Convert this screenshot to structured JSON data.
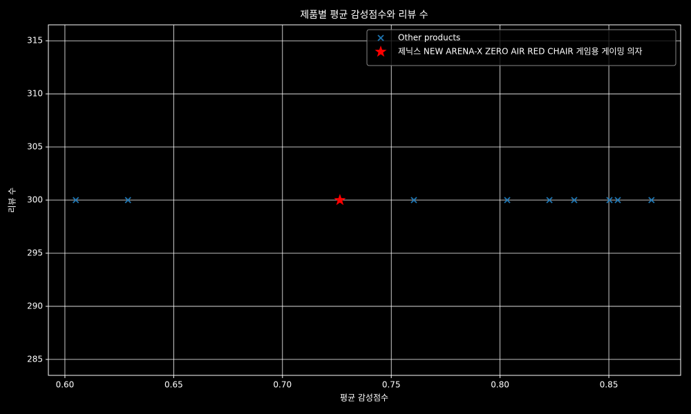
{
  "chart_data": {
    "type": "scatter",
    "title": "제품별 평균 감성점수와 리뷰 수",
    "xlabel": "평균 감성점수",
    "ylabel": "리뷰 수",
    "xlim": [
      0.5924,
      0.883
    ],
    "ylim": [
      283.5,
      316.5
    ],
    "xticks": [
      {
        "value": 0.6,
        "label": "0.60"
      },
      {
        "value": 0.65,
        "label": "0.65"
      },
      {
        "value": 0.7,
        "label": "0.70"
      },
      {
        "value": 0.75,
        "label": "0.75"
      },
      {
        "value": 0.8,
        "label": "0.80"
      },
      {
        "value": 0.85,
        "label": "0.85"
      }
    ],
    "yticks": [
      285,
      290,
      295,
      300,
      305,
      310,
      315
    ],
    "grid": true,
    "legend": "upper right",
    "series": [
      {
        "name": "Other products",
        "color": "#1f77b4",
        "marker": "x",
        "x": [
          0.605,
          0.629,
          0.7604,
          0.8033,
          0.8227,
          0.8341,
          0.8503,
          0.8541,
          0.8696
        ],
        "values": [
          300,
          300,
          300,
          300,
          300,
          300,
          300,
          300,
          300
        ]
      },
      {
        "name": "제닉스 NEW ARENA-X ZERO AIR RED CHAIR 게임용 게이밍 의자",
        "color": "#ff0000",
        "marker": "star",
        "x": [
          0.7264
        ],
        "values": [
          300
        ]
      }
    ]
  }
}
